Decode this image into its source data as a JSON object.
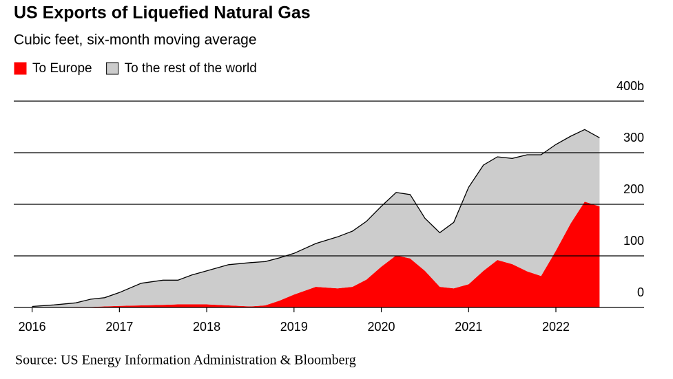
{
  "chart_data": {
    "type": "stacked_area",
    "title": "US Exports of Liquefied Natural Gas",
    "subtitle": "Cubic feet, six-month moving average",
    "source": "Source: US Energy Information Administration & Bloomberg",
    "x": [
      2016,
      2016.25,
      2016.5,
      2016.67,
      2016.83,
      2017,
      2017.25,
      2017.5,
      2017.67,
      2017.83,
      2018,
      2018.25,
      2018.5,
      2018.67,
      2018.83,
      2019,
      2019.25,
      2019.5,
      2019.67,
      2019.83,
      2020,
      2020.17,
      2020.33,
      2020.5,
      2020.67,
      2020.83,
      2021,
      2021.17,
      2021.33,
      2021.5,
      2021.67,
      2021.83,
      2022,
      2022.17,
      2022.33,
      2022.5
    ],
    "series": [
      {
        "name": "To Europe",
        "color": "#ff0000",
        "values": [
          0,
          0,
          1,
          1,
          2,
          3,
          4,
          5,
          6,
          6,
          6,
          4,
          2,
          4,
          13,
          25,
          40,
          37,
          40,
          54,
          79,
          101,
          95,
          71,
          40,
          37,
          45,
          71,
          92,
          84,
          70,
          61,
          110,
          163,
          205,
          196
        ]
      },
      {
        "name": "To the rest of the world",
        "color": "#cccccc",
        "values": [
          2,
          5,
          8,
          15,
          17,
          26,
          43,
          48,
          47,
          57,
          65,
          79,
          85,
          85,
          83,
          80,
          84,
          100,
          108,
          113,
          117,
          122,
          124,
          102,
          105,
          128,
          188,
          205,
          200,
          205,
          226,
          235,
          206,
          169,
          140,
          133
        ]
      }
    ],
    "xlim": [
      2015.79,
      2023.01
    ],
    "xticks": [
      2016,
      2017,
      2018,
      2019,
      2020,
      2021,
      2022
    ],
    "ylim": [
      0,
      400
    ],
    "yticks": [
      0,
      100,
      200,
      300,
      {
        "value": 400,
        "label": "400b"
      }
    ],
    "grid": true
  }
}
